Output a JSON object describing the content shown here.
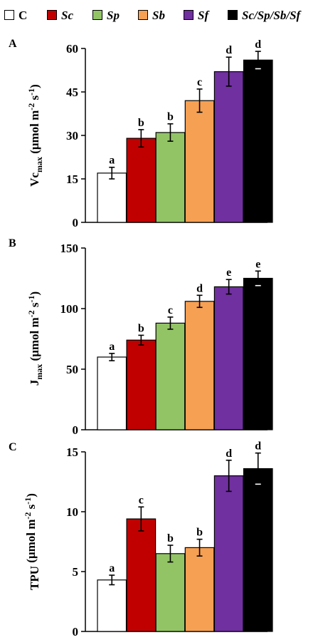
{
  "legend": [
    {
      "label": "C",
      "color": "#ffffff",
      "italic": false
    },
    {
      "label": "Sc",
      "color": "#c00000",
      "italic": true
    },
    {
      "label": "Sp",
      "color": "#92c466",
      "italic": true
    },
    {
      "label": "Sb",
      "color": "#f6a054",
      "italic": true
    },
    {
      "label": "Sf",
      "color": "#7030a0",
      "italic": true
    },
    {
      "label": "Sc/Sp/Sb/Sf",
      "color": "#000000",
      "italic": true
    }
  ],
  "chart_data": [
    {
      "type": "bar",
      "panel_label": "A",
      "ylabel_main": "Vc",
      "ylabel_sub": "max",
      "ylabel_unit": "(μmol m",
      "ylabel_exp1": "-2",
      "ylabel_mid": " s",
      "ylabel_exp2": "-1",
      "ylabel_end": ")",
      "categories": [
        "C",
        "Sc",
        "Sp",
        "Sb",
        "Sf",
        "Sc/Sp/Sb/Sf"
      ],
      "values": [
        17,
        29,
        31,
        42,
        52,
        56
      ],
      "errors": [
        2,
        3,
        3,
        4,
        5,
        3
      ],
      "letters": [
        "a",
        "b",
        "b",
        "c",
        "d",
        "d"
      ],
      "ylim": [
        0,
        60
      ],
      "yticks": [
        0,
        15,
        30,
        45,
        60
      ]
    },
    {
      "type": "bar",
      "panel_label": "B",
      "ylabel_main": "J",
      "ylabel_sub": "max",
      "ylabel_unit": "(μmol m",
      "ylabel_exp1": "-2",
      "ylabel_mid": " s",
      "ylabel_exp2": "-1",
      "ylabel_end": ")",
      "categories": [
        "C",
        "Sc",
        "Sp",
        "Sb",
        "Sf",
        "Sc/Sp/Sb/Sf"
      ],
      "values": [
        60,
        74,
        88,
        106,
        118,
        125
      ],
      "errors": [
        3,
        4,
        5,
        5,
        6,
        6
      ],
      "letters": [
        "a",
        "b",
        "c",
        "d",
        "e",
        "e"
      ],
      "ylim": [
        0,
        150
      ],
      "yticks": [
        0,
        50,
        100,
        150
      ]
    },
    {
      "type": "bar",
      "panel_label": "C",
      "ylabel_main": "TPU",
      "ylabel_sub": "",
      "ylabel_unit": " (μmol m",
      "ylabel_exp1": "-2",
      "ylabel_mid": " s",
      "ylabel_exp2": "-1",
      "ylabel_end": ")",
      "categories": [
        "C",
        "Sc",
        "Sp",
        "Sb",
        "Sf",
        "Sc/Sp/Sb/Sf"
      ],
      "values": [
        4.3,
        9.4,
        6.5,
        7.0,
        13.0,
        13.6
      ],
      "errors": [
        0.4,
        1.0,
        0.7,
        0.7,
        1.3,
        1.3
      ],
      "letters": [
        "a",
        "c",
        "b",
        "b",
        "d",
        "d"
      ],
      "ylim": [
        0,
        15
      ],
      "yticks": [
        0,
        5,
        10,
        15
      ]
    }
  ],
  "bar_colors": [
    "#ffffff",
    "#c00000",
    "#92c466",
    "#f6a054",
    "#7030a0",
    "#000000"
  ]
}
